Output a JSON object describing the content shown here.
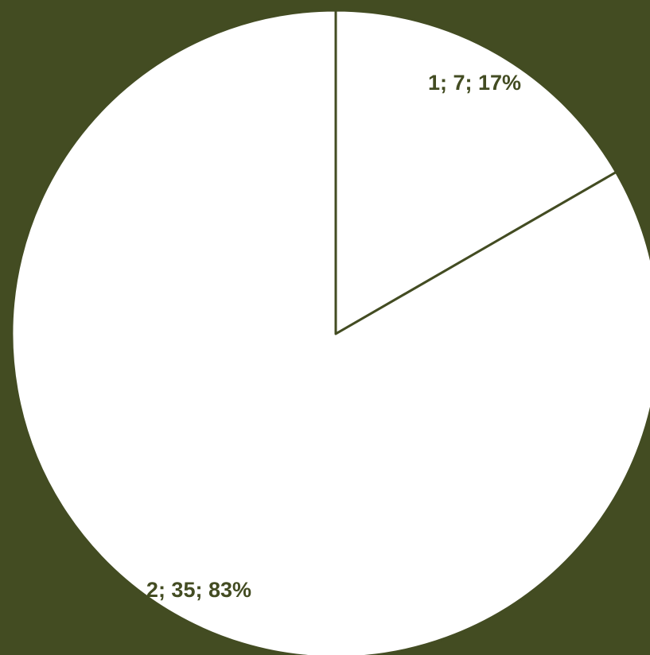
{
  "colors": {
    "background": "#434c22",
    "slice_fill": "#ffffff",
    "slice_border": "#434c22",
    "label_text": "#434c22"
  },
  "chart_data": {
    "type": "pie",
    "categories": [
      "1",
      "2"
    ],
    "values": [
      7,
      35
    ],
    "percentages": [
      17,
      83
    ],
    "data_labels": [
      "1; 7; 17%",
      "2; 35; 83%"
    ],
    "start_angle_deg": 0,
    "direction": "clockwise",
    "title": "",
    "legend": "none"
  }
}
